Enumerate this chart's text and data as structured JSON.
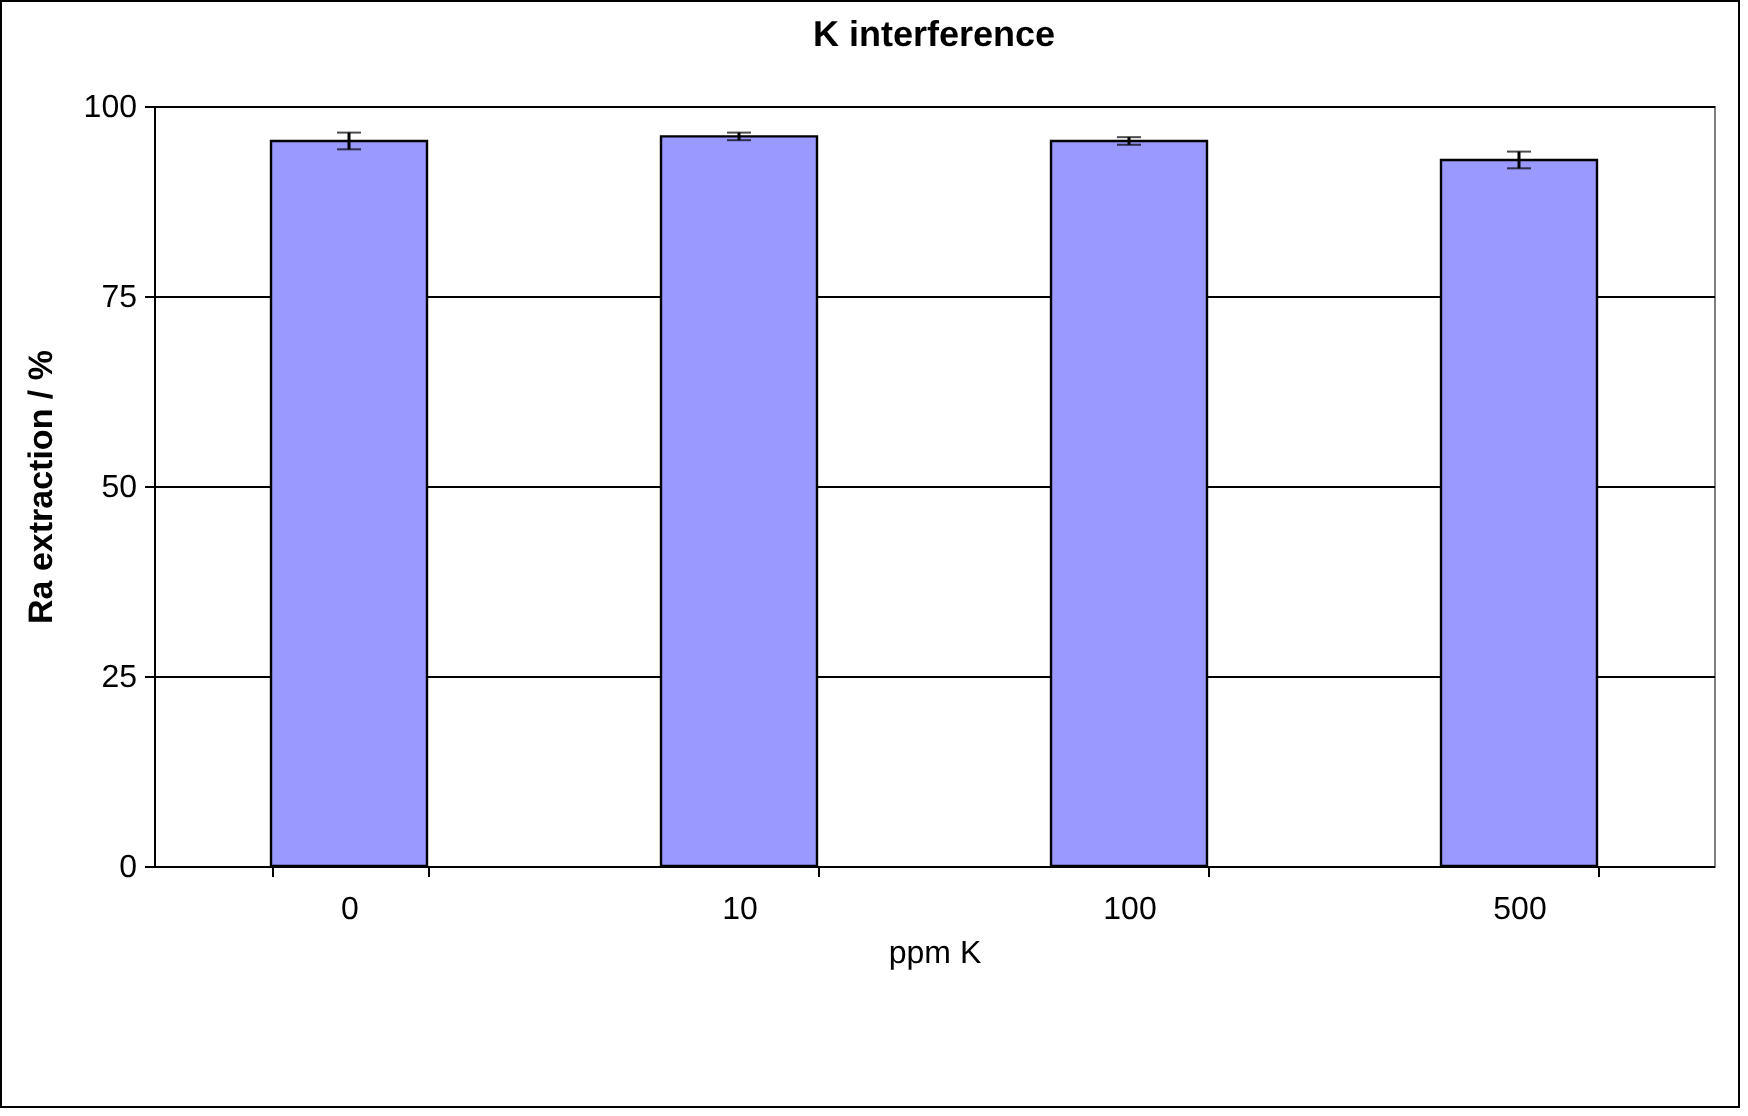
{
  "chart_data": {
    "type": "bar",
    "title": "K interference",
    "xlabel": "ppm K",
    "ylabel": "Ra extraction / %",
    "categories": [
      "0",
      "10",
      "100",
      "500"
    ],
    "values": [
      95.4,
      96.0,
      95.4,
      92.9
    ],
    "errors": [
      1.1,
      0.5,
      0.5,
      1.1
    ],
    "color": "#9999ff",
    "ylim": [
      0,
      100
    ],
    "yticks": [
      0,
      25,
      50,
      75,
      100
    ],
    "grid": "y"
  }
}
